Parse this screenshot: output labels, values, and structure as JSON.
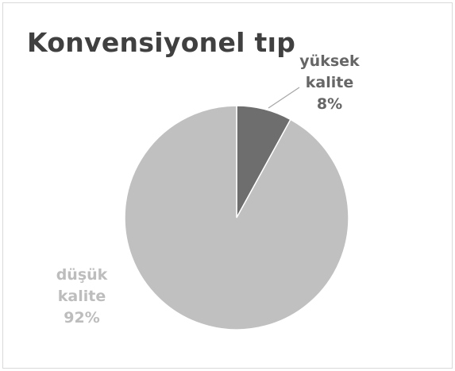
{
  "chart_data": {
    "type": "pie",
    "title": "Konvensiyonel tıp",
    "slices": [
      {
        "label_lines": [
          "yüksek",
          "kalite"
        ],
        "percent_label": "8%",
        "value": 8,
        "color": "#6e6e6e",
        "label_color": "#666666"
      },
      {
        "label_lines": [
          "düşük",
          "kalite"
        ],
        "percent_label": "92%",
        "value": 92,
        "color": "#c0c0c0",
        "label_color": "#bdbdbd"
      }
    ],
    "start_angle_deg": 0,
    "direction": "clockwise",
    "legend": "none",
    "leader_line_color": "#a6a6a6"
  }
}
